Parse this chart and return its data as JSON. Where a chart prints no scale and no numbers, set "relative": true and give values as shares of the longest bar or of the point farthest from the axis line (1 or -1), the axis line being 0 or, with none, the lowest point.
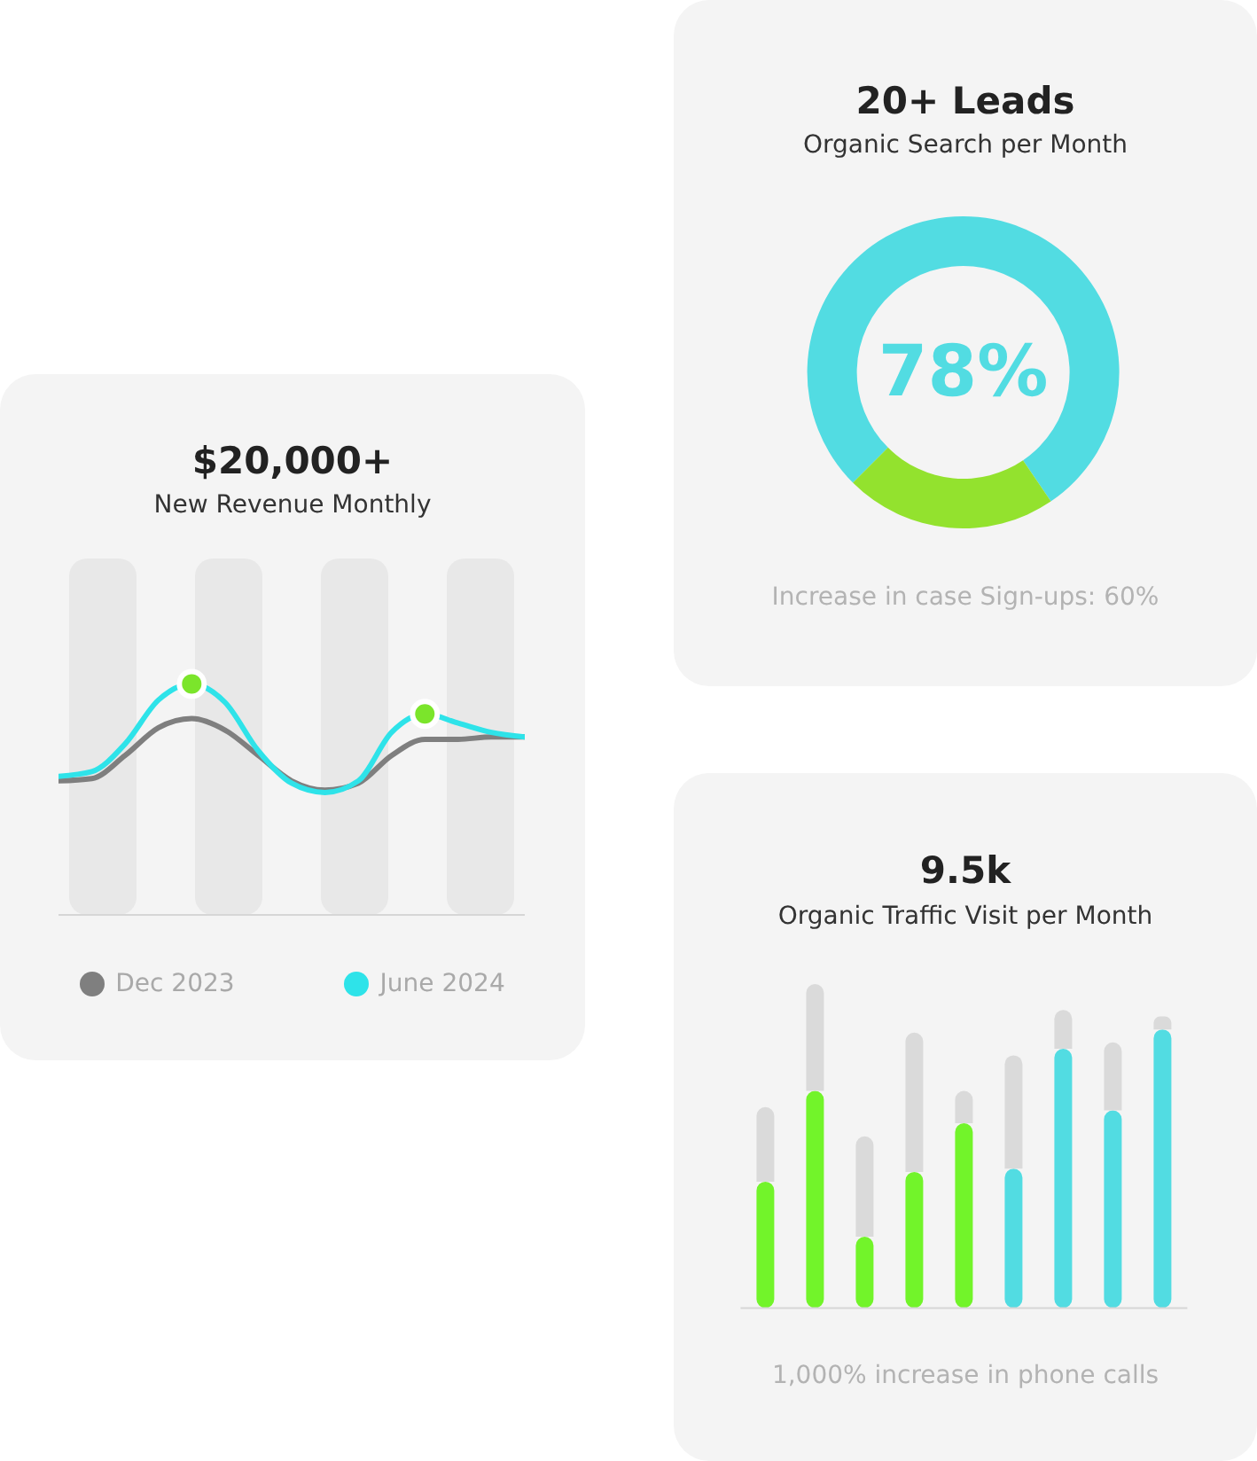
{
  "chart_data": [
    {
      "type": "line",
      "title": "$20,000+",
      "subtitle": "New Revenue Monthly",
      "categories": [
        null,
        null,
        null,
        null,
        null,
        null,
        null,
        null,
        null,
        null,
        null,
        null,
        null,
        null,
        null
      ],
      "relative": true,
      "legend": "bottom",
      "series": [
        {
          "name": "Dec 2023",
          "color": "#7f7f7f",
          "values": [
            0.58,
            0.59,
            0.69,
            0.81,
            0.85,
            0.8,
            0.69,
            0.58,
            0.54,
            0.57,
            0.69,
            0.76,
            0.76,
            0.77,
            0.77
          ]
        },
        {
          "name": "June 2024",
          "color": "#2ee3e9",
          "values": [
            0.6,
            0.62,
            0.74,
            0.93,
            1.0,
            0.92,
            0.71,
            0.57,
            0.53,
            0.58,
            0.79,
            0.87,
            0.83,
            0.79,
            0.77
          ]
        }
      ]
    },
    {
      "type": "donut",
      "title": "20+ Leads",
      "subtitle": "Organic Search per Month",
      "categories": [
        null,
        null
      ],
      "values": [
        78,
        22
      ],
      "colors": [
        "#52dce2",
        "#93e22e"
      ],
      "annotations": [
        "78%",
        "Increase in case Sign-ups: 60%"
      ]
    },
    {
      "type": "bar",
      "title": "9.5k",
      "subtitle": "Organic Traffic Visit per Month",
      "categories": [
        null,
        null,
        null,
        null,
        null,
        null,
        null,
        null,
        null
      ],
      "relative": true,
      "stacked": true,
      "series": [
        {
          "colors": [
            "#72f42a",
            "#72f42a",
            "#72f42a",
            "#72f42a",
            "#72f42a",
            "#52dce2",
            "#52dce2",
            "#52dce2",
            "#52dce2"
          ],
          "values": [
            0.39,
            0.67,
            0.22,
            0.42,
            0.57,
            0.43,
            0.8,
            0.61,
            0.86
          ]
        },
        {
          "color": "#dadada",
          "values": [
            0.23,
            0.33,
            0.31,
            0.43,
            0.1,
            0.35,
            0.12,
            0.21,
            0.04
          ]
        }
      ],
      "annotations": [
        "1,000% increase in phone calls"
      ]
    }
  ]
}
